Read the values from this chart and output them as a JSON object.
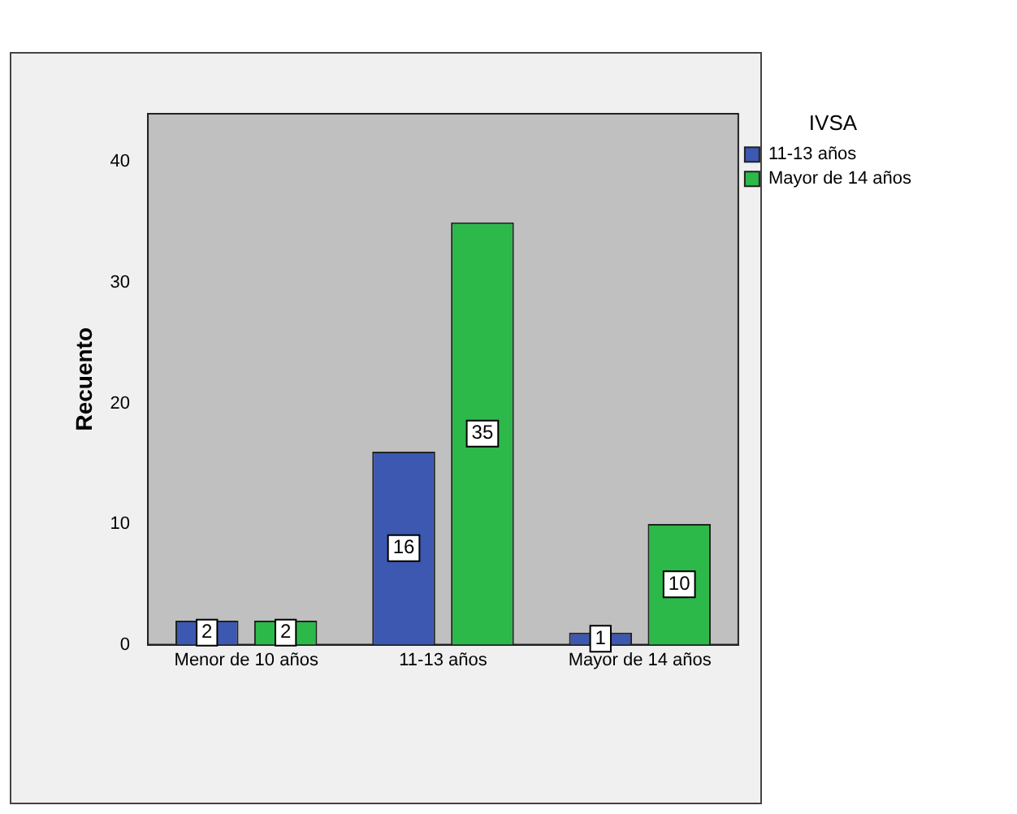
{
  "chart_data": {
    "type": "bar",
    "ylabel": "Recuento",
    "legend_title": "IVSA",
    "categories": [
      "Menor de 10 años",
      "11-13 años",
      "Mayor de 14 años"
    ],
    "series": [
      {
        "name": "11-13 años",
        "color": "#3c58b0",
        "values": [
          2,
          16,
          1
        ]
      },
      {
        "name": "Mayor de 14 años",
        "color": "#2db84a",
        "values": [
          2,
          35,
          10
        ]
      }
    ],
    "ylim": [
      0,
      44
    ],
    "yticks": [
      0,
      10,
      20,
      30,
      40
    ],
    "grid": false,
    "legend": "top right",
    "data_labels": true
  }
}
